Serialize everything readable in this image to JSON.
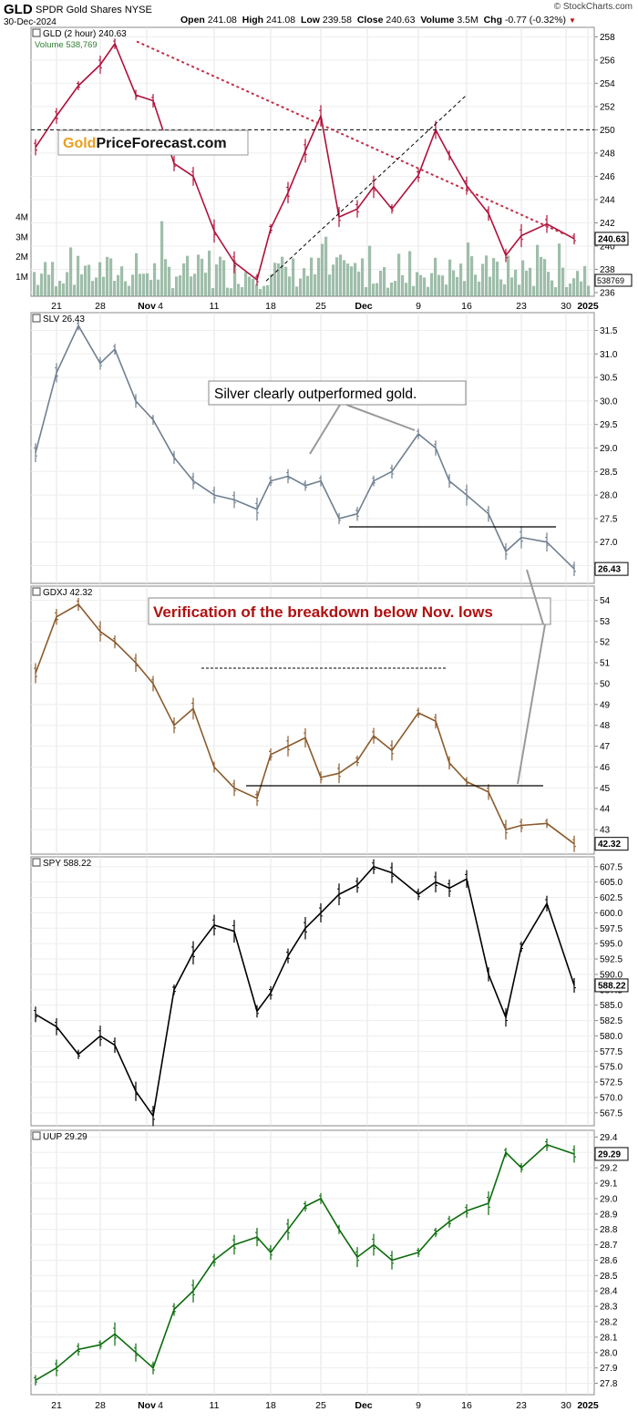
{
  "header": {
    "symbol": "GLD",
    "name": "SPDR Gold Shares",
    "exchange": "NYSE",
    "date": "30-Dec-2024",
    "watermark": "© StockCharts.com",
    "stats": [
      {
        "label": "Open",
        "value": "241.08"
      },
      {
        "label": "High",
        "value": "241.08"
      },
      {
        "label": "Low",
        "value": "239.58"
      },
      {
        "label": "Close",
        "value": "240.63"
      },
      {
        "label": "Volume",
        "value": "3.5M"
      },
      {
        "label": "Chg",
        "value": "-0.77 (-0.32%)"
      }
    ]
  },
  "x_axis": {
    "labels": [
      "21",
      "28",
      "Nov",
      "4",
      "11",
      "18",
      "25",
      "Dec",
      "9",
      "16",
      "23",
      "30",
      "2025"
    ]
  },
  "chart_data": [
    {
      "type": "line",
      "panel": "GLD",
      "title": "GLD (2 hour) 240.63",
      "subtitle": "Volume 538,769",
      "last_value": "240.63",
      "volume_value": "538769",
      "color": "#b0103a",
      "volume_color": "#7fa88e",
      "annotation": {
        "gold": "Gold",
        "rest": "PriceForecast.com"
      },
      "y_ticks": [
        "258",
        "256",
        "254",
        "252",
        "250",
        "248",
        "246",
        "244",
        "242",
        "240",
        "238",
        "236"
      ],
      "volume_ticks": [
        "4M",
        "3M",
        "2M",
        "1M"
      ],
      "ylim": [
        236,
        258.5
      ],
      "x": [
        "Oct 18",
        "Oct 21",
        "Oct 24",
        "Oct 28",
        "Oct 30",
        "Nov 1",
        "Nov 4",
        "Nov 6",
        "Nov 8",
        "Nov 11",
        "Nov 13",
        "Nov 15",
        "Nov 18",
        "Nov 20",
        "Nov 22",
        "Nov 25",
        "Nov 27",
        "Dec 2",
        "Dec 4",
        "Dec 6",
        "Dec 9",
        "Dec 11",
        "Dec 13",
        "Dec 16",
        "Dec 18",
        "Dec 20",
        "Dec 23",
        "Dec 26",
        "Dec 30"
      ],
      "values": [
        248.5,
        251.2,
        253.8,
        255.6,
        257.4,
        253.0,
        252.5,
        247.1,
        246.0,
        241.3,
        238.6,
        237.1,
        241.5,
        244.6,
        248.2,
        251.2,
        242.5,
        243.2,
        245.1,
        243.2,
        246.1,
        250.0,
        247.8,
        245.2,
        242.8,
        239.2,
        240.9,
        241.9,
        240.63
      ]
    },
    {
      "type": "line",
      "panel": "SLV",
      "title": "SLV 26.43",
      "last_value": "26.43",
      "color": "#708090",
      "annotation": "Silver clearly outperformed gold.",
      "y_ticks": [
        "31.5",
        "31.0",
        "30.5",
        "30.0",
        "29.5",
        "29.0",
        "28.5",
        "28.0",
        "27.5",
        "27.0",
        "26.5"
      ],
      "ylim": [
        26.2,
        31.8
      ],
      "x": [
        "Oct 18",
        "Oct 21",
        "Oct 24",
        "Oct 28",
        "Oct 30",
        "Nov 1",
        "Nov 4",
        "Nov 6",
        "Nov 8",
        "Nov 11",
        "Nov 13",
        "Nov 15",
        "Nov 18",
        "Nov 20",
        "Nov 22",
        "Nov 25",
        "Nov 27",
        "Dec 2",
        "Dec 4",
        "Dec 6",
        "Dec 9",
        "Dec 11",
        "Dec 13",
        "Dec 16",
        "Dec 18",
        "Dec 20",
        "Dec 23",
        "Dec 26",
        "Dec 30"
      ],
      "values": [
        28.9,
        30.6,
        31.6,
        30.8,
        31.1,
        30.0,
        29.6,
        28.8,
        28.3,
        28.0,
        27.9,
        27.7,
        28.3,
        28.4,
        28.2,
        28.3,
        27.5,
        27.6,
        28.3,
        28.5,
        29.3,
        29.0,
        28.3,
        28.0,
        27.6,
        26.8,
        27.1,
        27.0,
        26.43
      ]
    },
    {
      "type": "line",
      "panel": "GDXJ",
      "title": "GDXJ 42.32",
      "last_value": "42.32",
      "color": "#8b5a2b",
      "annotation": "Verification of the breakdown below Nov. lows",
      "y_ticks": [
        "54",
        "53",
        "52",
        "51",
        "50",
        "49",
        "48",
        "47",
        "46",
        "45",
        "44",
        "43"
      ],
      "ylim": [
        42.0,
        54.5
      ],
      "x": [
        "Oct 18",
        "Oct 21",
        "Oct 24",
        "Oct 28",
        "Oct 30",
        "Nov 1",
        "Nov 4",
        "Nov 6",
        "Nov 8",
        "Nov 11",
        "Nov 13",
        "Nov 15",
        "Nov 18",
        "Nov 20",
        "Nov 22",
        "Nov 25",
        "Nov 27",
        "Dec 2",
        "Dec 4",
        "Dec 6",
        "Dec 9",
        "Dec 11",
        "Dec 13",
        "Dec 16",
        "Dec 18",
        "Dec 20",
        "Dec 23",
        "Dec 26",
        "Dec 30"
      ],
      "values": [
        50.5,
        53.2,
        53.8,
        52.5,
        52.0,
        51.0,
        50.0,
        48.0,
        48.8,
        46.0,
        45.0,
        44.5,
        46.6,
        47.0,
        47.4,
        45.5,
        45.7,
        46.3,
        47.5,
        46.8,
        48.6,
        48.2,
        46.2,
        45.3,
        44.8,
        43.0,
        43.2,
        43.3,
        42.32
      ]
    },
    {
      "type": "line",
      "panel": "SPY",
      "title": "SPY 588.22",
      "last_value": "588.22",
      "color": "#000000",
      "y_ticks": [
        "607.5",
        "605.0",
        "602.5",
        "600.0",
        "597.5",
        "595.0",
        "592.5",
        "590.0",
        "587.5",
        "585.0",
        "582.5",
        "580.0",
        "577.5",
        "575.0",
        "572.5",
        "570.0",
        "567.5"
      ],
      "ylim": [
        566.0,
        608.5
      ],
      "x": [
        "Oct 18",
        "Oct 21",
        "Oct 24",
        "Oct 28",
        "Oct 30",
        "Nov 1",
        "Nov 4",
        "Nov 6",
        "Nov 8",
        "Nov 11",
        "Nov 13",
        "Nov 15",
        "Nov 18",
        "Nov 20",
        "Nov 22",
        "Nov 25",
        "Nov 27",
        "Dec 2",
        "Dec 4",
        "Dec 6",
        "Dec 9",
        "Dec 11",
        "Dec 13",
        "Dec 16",
        "Dec 18",
        "Dec 20",
        "Dec 23",
        "Dec 26",
        "Dec 30"
      ],
      "values": [
        583.5,
        581.5,
        577.0,
        580.0,
        578.5,
        571.0,
        567.0,
        587.5,
        593.5,
        598.0,
        597.0,
        584.0,
        587.0,
        593.0,
        597.5,
        600.0,
        603.0,
        604.5,
        607.5,
        606.5,
        603.0,
        605.0,
        604.0,
        605.5,
        590.0,
        583.0,
        594.5,
        601.5,
        588.22
      ]
    },
    {
      "type": "line",
      "panel": "UUP",
      "title": "UUP 29.29",
      "last_value": "29.29",
      "color": "#0a6b0a",
      "y_ticks": [
        "29.4",
        "29.3",
        "29.2",
        "29.1",
        "29.0",
        "28.9",
        "28.8",
        "28.7",
        "28.6",
        "28.5",
        "28.4",
        "28.3",
        "28.2",
        "28.1",
        "28.0",
        "27.9",
        "27.8"
      ],
      "ylim": [
        27.75,
        29.42
      ],
      "x": [
        "Oct 18",
        "Oct 21",
        "Oct 24",
        "Oct 28",
        "Oct 30",
        "Nov 1",
        "Nov 4",
        "Nov 6",
        "Nov 8",
        "Nov 11",
        "Nov 13",
        "Nov 15",
        "Nov 18",
        "Nov 20",
        "Nov 22",
        "Nov 25",
        "Nov 27",
        "Dec 2",
        "Dec 4",
        "Dec 6",
        "Dec 9",
        "Dec 11",
        "Dec 13",
        "Dec 16",
        "Dec 18",
        "Dec 20",
        "Dec 23",
        "Dec 26",
        "Dec 30"
      ],
      "values": [
        27.82,
        27.9,
        28.02,
        28.05,
        28.12,
        28.0,
        27.9,
        28.28,
        28.4,
        28.6,
        28.7,
        28.75,
        28.65,
        28.8,
        28.95,
        29.0,
        28.8,
        28.62,
        28.7,
        28.6,
        28.65,
        28.78,
        28.85,
        28.92,
        28.97,
        29.3,
        29.2,
        29.35,
        29.29
      ]
    }
  ]
}
